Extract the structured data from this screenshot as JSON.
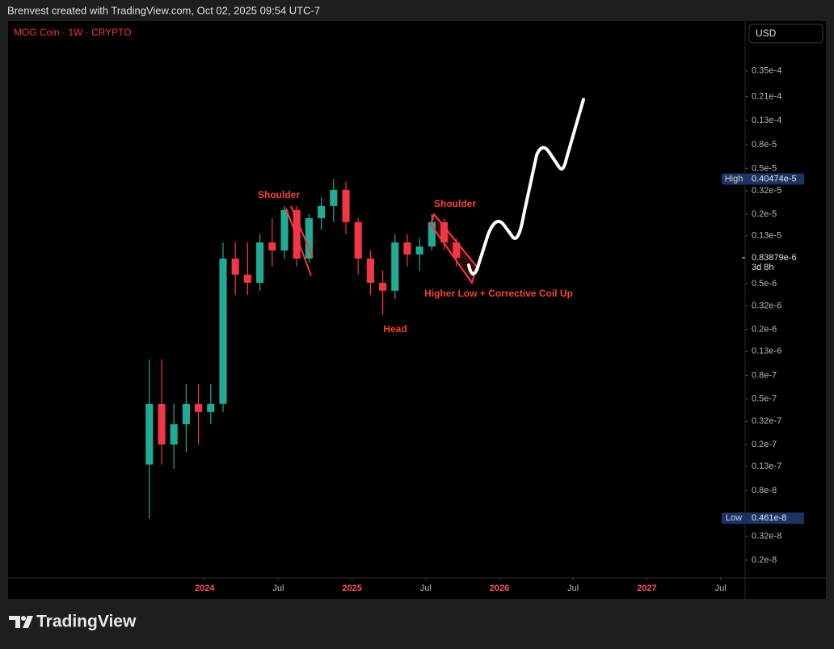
{
  "header": "Brenvest created with TradingView.com, Oct 02, 2025 09:54 UTC-7",
  "footer_brand": "TradingView",
  "chart_data": {
    "type": "candlestick",
    "title": "MOG Coin · 1W · CRYPTO",
    "currency": "USD",
    "log_scale": true,
    "up_color": "#22ab94",
    "down_color": "#f23645",
    "x": [
      "2023-08",
      "2023-09",
      "2023-10",
      "2023-11",
      "2023-12",
      "2024-01",
      "2024-02",
      "2024-03",
      "2024-04",
      "2024-05",
      "2024-06",
      "2024-07",
      "2024-08",
      "2024-09",
      "2024-10",
      "2024-11",
      "2024-12",
      "2025-01",
      "2025-02",
      "2025-03",
      "2025-04",
      "2025-05",
      "2025-06",
      "2025-07",
      "2025-08",
      "2025-09"
    ],
    "open": [
      1.35e-08,
      4.52e-08,
      2.01e-08,
      3.02e-08,
      4.52e-08,
      3.85e-08,
      4.52e-08,
      8.26e-07,
      5.99e-07,
      5.09e-07,
      1.14e-06,
      9.71e-07,
      2.18e-06,
      8.26e-07,
      1.85e-06,
      2.36e-06,
      3.26e-06,
      1.71e-06,
      8.26e-07,
      5.09e-07,
      4.34e-07,
      1.14e-06,
      8.96e-07,
      1.05e-06,
      1.71e-06,
      1.14e-06
    ],
    "high": [
      1.1e-07,
      1.1e-07,
      4.52e-08,
      6.76e-08,
      6.76e-08,
      6.76e-08,
      1.14e-06,
      1.14e-06,
      1.14e-06,
      1.34e-06,
      1.85e-06,
      2.36e-06,
      2.36e-06,
      2.01e-06,
      2.77e-06,
      4.0474e-06,
      3.85e-06,
      1.85e-06,
      9.71e-07,
      6.49e-07,
      1.34e-06,
      1.34e-06,
      1.24e-06,
      2.01e-06,
      1.85e-06,
      1.24e-06
    ],
    "low": [
      4.61e-09,
      1.35e-08,
      1.24e-08,
      1.72e-08,
      2.01e-08,
      3.02e-08,
      3.85e-08,
      3.99e-07,
      3.99e-07,
      4.34e-07,
      7.04e-07,
      8.26e-07,
      7.04e-07,
      7.63e-07,
      1.46e-06,
      1.71e-06,
      1.34e-06,
      5.99e-07,
      3.99e-07,
      2.67e-07,
      3.68e-07,
      7.04e-07,
      6.49e-07,
      9.71e-07,
      9.71e-07,
      7.04e-07
    ],
    "close": [
      4.52e-08,
      2.01e-08,
      3.02e-08,
      4.52e-08,
      3.85e-08,
      4.52e-08,
      8.26e-07,
      5.99e-07,
      5.09e-07,
      1.14e-06,
      9.71e-07,
      2.18e-06,
      8.26e-07,
      1.85e-06,
      2.36e-06,
      3.26e-06,
      1.71e-06,
      8.26e-07,
      5.09e-07,
      4.34e-07,
      1.14e-06,
      8.96e-07,
      1.05e-06,
      1.71e-06,
      1.14e-06,
      8.3879e-07
    ],
    "xlim": [
      "2022-09",
      "2027-09"
    ],
    "xticks": [
      {
        "value": "2024-01",
        "label": "2024"
      },
      {
        "value": "2024-07",
        "label": "Jul"
      },
      {
        "value": "2025-01",
        "label": "2025"
      },
      {
        "value": "2025-07",
        "label": "Jul"
      },
      {
        "value": "2026-01",
        "label": "2026"
      },
      {
        "value": "2026-07",
        "label": "Jul"
      },
      {
        "value": "2027-01",
        "label": "2027"
      },
      {
        "value": "2027-07",
        "label": "Jul"
      }
    ],
    "ylim": [
      1.4e-09,
      9.5e-05
    ],
    "yticks": [
      {
        "value": 3.5e-05,
        "label": "0.35e-4"
      },
      {
        "value": 2.1e-05,
        "label": "0.21e-4"
      },
      {
        "value": 1.3e-05,
        "label": "0.13e-4"
      },
      {
        "value": 8e-06,
        "label": "0.8e-5"
      },
      {
        "value": 5e-06,
        "label": "0.5e-5"
      },
      {
        "value": 3.2e-06,
        "label": "0.32e-5"
      },
      {
        "value": 2e-06,
        "label": "0.2e-5"
      },
      {
        "value": 1.3e-06,
        "label": "0.13e-5"
      },
      {
        "value": 5e-07,
        "label": "0.5e-6"
      },
      {
        "value": 3.2e-07,
        "label": "0.32e-6"
      },
      {
        "value": 2e-07,
        "label": "0.2e-6"
      },
      {
        "value": 1.3e-07,
        "label": "0.13e-6"
      },
      {
        "value": 8e-08,
        "label": "0.8e-7"
      },
      {
        "value": 5e-08,
        "label": "0.5e-7"
      },
      {
        "value": 3.2e-08,
        "label": "0.32e-7"
      },
      {
        "value": 2e-08,
        "label": "0.2e-7"
      },
      {
        "value": 1.3e-08,
        "label": "0.13e-7"
      },
      {
        "value": 8e-09,
        "label": "0.8e-8"
      },
      {
        "value": 3.2e-09,
        "label": "0.32e-8"
      },
      {
        "value": 2e-09,
        "label": "0.2e-8"
      }
    ],
    "high_marker": {
      "name": "High",
      "value": 4.0474e-06,
      "label": "0.40474e-5"
    },
    "low_marker": {
      "name": "Low",
      "value": 4.61e-09,
      "label": "0.461e-8"
    },
    "last_price": {
      "value": 8.3879e-07,
      "label": "0.83879e-6",
      "countdown": "3d 8h"
    },
    "annotations": [
      "Shoulder",
      "Shoulder",
      "Head",
      "Higher Low + Corrective Coil Up"
    ]
  }
}
